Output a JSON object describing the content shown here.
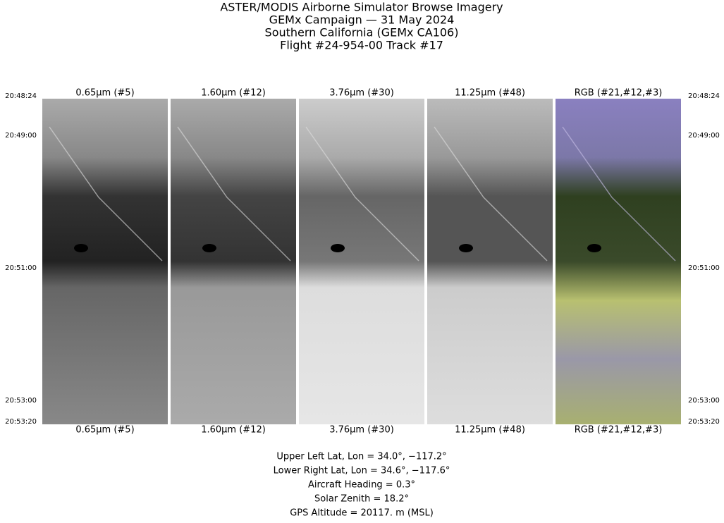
{
  "header": {
    "lines": [
      "ASTER/MODIS Airborne Simulator Browse Imagery",
      "GEMx Campaign — 31 May 2024",
      "Southern California (GEMx CA106)",
      "Flight #24-954-00 Track #17"
    ]
  },
  "panels": [
    {
      "label": "0.65μm (#5)"
    },
    {
      "label": "1.60μm (#12)"
    },
    {
      "label": "3.76μm (#30)"
    },
    {
      "label": "11.25μm (#48)"
    },
    {
      "label": "RGB (#21,#12,#3)"
    }
  ],
  "times": [
    "20:48:24",
    "20:49:00",
    "20:51:00",
    "20:53:00",
    "20:53:20"
  ],
  "footer": {
    "lines": [
      "Upper Left Lat, Lon =   34.0°, −117.2°",
      "Lower Right Lat, Lon =   34.6°, −117.6°",
      "Aircraft Heading =    0.3°",
      "Solar Zenith =   18.2°",
      "GPS Altitude =  20117. m (MSL)"
    ]
  }
}
